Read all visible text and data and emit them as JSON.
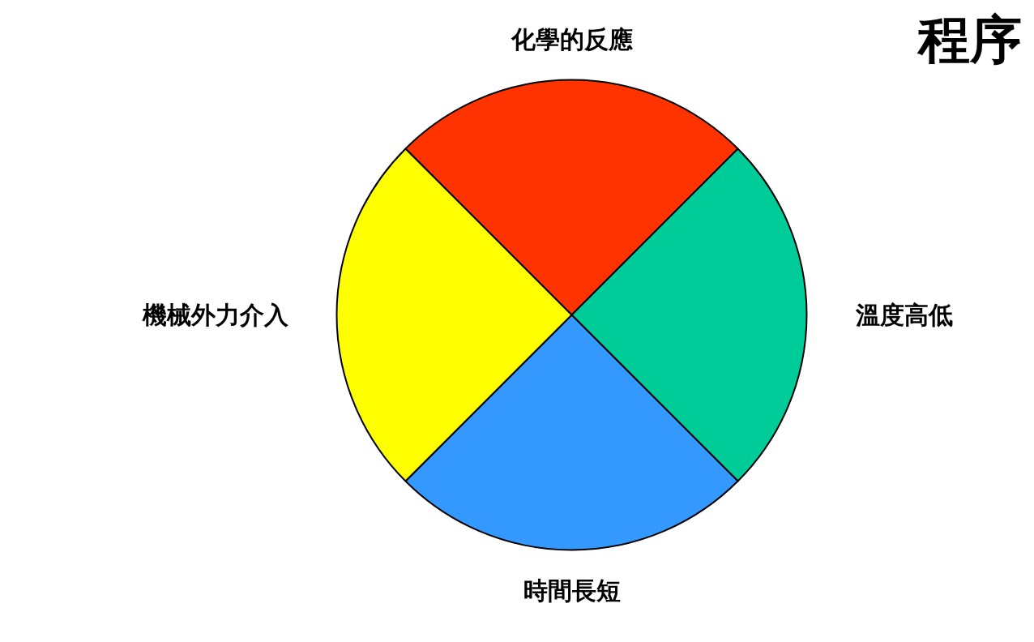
{
  "chart_data": {
    "type": "pie",
    "title": "程序",
    "categories": [
      "化學的反應",
      "溫度高低",
      "時間長短",
      "機械外力介入"
    ],
    "values": [
      25,
      25,
      25,
      25
    ],
    "colors": [
      "#ff3300",
      "#00cc99",
      "#3399ff",
      "#ffff00"
    ]
  }
}
